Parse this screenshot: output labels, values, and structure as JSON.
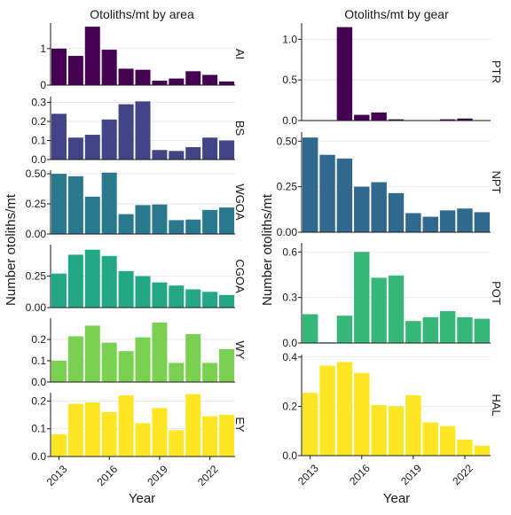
{
  "chart_data": [
    {
      "type": "bar",
      "title": "Otoliths/mt by area",
      "xlabel": "Year",
      "ylabel": "Number otoliths/mt",
      "x": [
        2013,
        2014,
        2015,
        2016,
        2017,
        2018,
        2019,
        2020,
        2021,
        2022,
        2023
      ],
      "x_ticks": [
        "2013",
        "2016",
        "2019",
        "2022"
      ],
      "panels": [
        {
          "name": "AI",
          "values": [
            1.0,
            0.8,
            1.6,
            0.97,
            0.45,
            0.42,
            0.12,
            0.18,
            0.38,
            0.28,
            0.1
          ],
          "ylim": [
            0,
            1.7
          ],
          "ticks": [
            {
              "v": 0,
              "label": "0"
            },
            {
              "v": 1,
              "label": "1"
            }
          ]
        },
        {
          "name": "BS",
          "values": [
            0.24,
            0.115,
            0.13,
            0.21,
            0.29,
            0.305,
            0.05,
            0.045,
            0.065,
            0.115,
            0.1
          ],
          "ylim": [
            0,
            0.33
          ],
          "ticks": [
            {
              "v": 0,
              "label": "0.0"
            },
            {
              "v": 0.1,
              "label": "0.1"
            },
            {
              "v": 0.2,
              "label": "0.2"
            },
            {
              "v": 0.3,
              "label": "0.3"
            }
          ]
        },
        {
          "name": "WGOA",
          "values": [
            0.5,
            0.48,
            0.31,
            0.51,
            0.165,
            0.24,
            0.245,
            0.115,
            0.12,
            0.2,
            0.22
          ],
          "ylim": [
            0,
            0.53
          ],
          "ticks": [
            {
              "v": 0,
              "label": "0.00"
            },
            {
              "v": 0.25,
              "label": "0.25"
            },
            {
              "v": 0.5,
              "label": "0.50"
            }
          ]
        },
        {
          "name": "CGOA",
          "values": [
            0.27,
            0.42,
            0.46,
            0.41,
            0.29,
            0.25,
            0.2,
            0.175,
            0.145,
            0.125,
            0.1
          ],
          "ylim": [
            0,
            0.5
          ],
          "ticks": [
            {
              "v": 0,
              "label": "0.00"
            },
            {
              "v": 0.25,
              "label": "0.25"
            }
          ]
        },
        {
          "name": "WY",
          "values": [
            0.1,
            0.215,
            0.265,
            0.185,
            0.145,
            0.21,
            0.28,
            0.09,
            0.225,
            0.09,
            0.155
          ],
          "ylim": [
            0,
            0.3
          ],
          "ticks": [
            {
              "v": 0,
              "label": "0.0"
            },
            {
              "v": 0.1,
              "label": "0.1"
            },
            {
              "v": 0.2,
              "label": "0.2"
            }
          ]
        },
        {
          "name": "EY",
          "values": [
            0.08,
            0.19,
            0.195,
            0.16,
            0.22,
            0.12,
            0.175,
            0.095,
            0.225,
            0.145,
            0.15
          ],
          "ylim": [
            0,
            0.23
          ],
          "ticks": [
            {
              "v": 0,
              "label": "0.0"
            },
            {
              "v": 0.1,
              "label": "0.1"
            },
            {
              "v": 0.2,
              "label": "0.2"
            }
          ]
        }
      ],
      "colors": [
        "#440154",
        "#414487",
        "#2a788e",
        "#22a884",
        "#7ad151",
        "#fde725"
      ],
      "grid": true,
      "legend": "none"
    },
    {
      "type": "bar",
      "title": "Otoliths/mt by gear",
      "xlabel": "Year",
      "ylabel": "Number otoliths/mt",
      "x": [
        2013,
        2014,
        2015,
        2016,
        2017,
        2018,
        2019,
        2020,
        2021,
        2022,
        2023
      ],
      "x_ticks": [
        "2013",
        "2016",
        "2019",
        "2022"
      ],
      "panels": [
        {
          "name": "PTR",
          "values": [
            0,
            0,
            1.15,
            0.07,
            0.1,
            0.015,
            0,
            0,
            0.015,
            0.025,
            0
          ],
          "ylim": [
            0,
            1.2
          ],
          "ticks": [
            {
              "v": 0,
              "label": "0.0"
            },
            {
              "v": 0.5,
              "label": "0.5"
            },
            {
              "v": 1,
              "label": "1.0"
            }
          ]
        },
        {
          "name": "NPT",
          "values": [
            0.52,
            0.425,
            0.405,
            0.25,
            0.275,
            0.215,
            0.105,
            0.085,
            0.12,
            0.13,
            0.11
          ],
          "ylim": [
            0,
            0.55
          ],
          "ticks": [
            {
              "v": 0,
              "label": "0.00"
            },
            {
              "v": 0.25,
              "label": "0.25"
            },
            {
              "v": 0.5,
              "label": "0.50"
            }
          ]
        },
        {
          "name": "POT",
          "values": [
            0.19,
            0.005,
            0.18,
            0.6,
            0.43,
            0.445,
            0.145,
            0.17,
            0.21,
            0.17,
            0.16
          ],
          "ylim": [
            0,
            0.66
          ],
          "ticks": [
            {
              "v": 0,
              "label": "0.0"
            },
            {
              "v": 0.3,
              "label": "0.3"
            },
            {
              "v": 0.6,
              "label": "0.6"
            }
          ]
        },
        {
          "name": "HAL",
          "values": [
            0.255,
            0.365,
            0.38,
            0.335,
            0.205,
            0.2,
            0.245,
            0.135,
            0.12,
            0.065,
            0.04
          ],
          "ylim": [
            0,
            0.41
          ],
          "ticks": [
            {
              "v": 0,
              "label": "0.0"
            },
            {
              "v": 0.2,
              "label": "0.2"
            },
            {
              "v": 0.4,
              "label": "0.4"
            }
          ]
        }
      ],
      "colors": [
        "#440154",
        "#31688e",
        "#35b779",
        "#fde725"
      ],
      "grid": true,
      "legend": "none"
    }
  ]
}
